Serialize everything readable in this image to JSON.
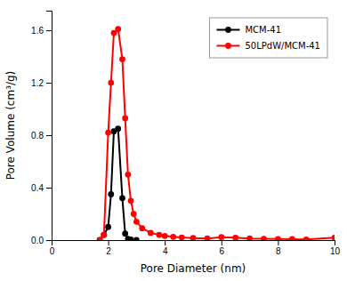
{
  "chart_data": {
    "type": "line",
    "xlabel": "Pore Diameter (nm)",
    "ylabel": "Pore Volume (cm³/g)",
    "xlim": [
      0,
      10
    ],
    "ylim": [
      0,
      1.75
    ],
    "xticks": [
      0,
      2,
      4,
      6,
      8,
      10
    ],
    "yticks": [
      {
        "value": 0.0,
        "label": "0.0"
      },
      0.4,
      0.8,
      1.2,
      1.6
    ],
    "grid": false,
    "legend": "upper right",
    "series": [
      {
        "name": "MCM-41",
        "color": "#000000",
        "marker": "circle",
        "x": [
          1.7,
          1.85,
          2.0,
          2.1,
          2.2,
          2.35,
          2.5,
          2.6,
          2.7,
          2.8,
          3.0
        ],
        "values": [
          0.0,
          0.04,
          0.1,
          0.35,
          0.83,
          0.85,
          0.32,
          0.05,
          0.01,
          0.005,
          0.0
        ]
      },
      {
        "name": "50LPdW/MCM-41",
        "color": "#ff0000",
        "marker": "circle",
        "x": [
          1.7,
          1.85,
          2.0,
          2.1,
          2.2,
          2.35,
          2.5,
          2.6,
          2.7,
          2.8,
          2.9,
          3.0,
          3.2,
          3.5,
          3.8,
          4.0,
          4.3,
          4.6,
          5.0,
          5.5,
          6.0,
          6.5,
          7.0,
          7.5,
          8.0,
          8.5,
          9.0,
          10.0
        ],
        "values": [
          0.0,
          0.04,
          0.82,
          1.2,
          1.58,
          1.61,
          1.38,
          0.93,
          0.5,
          0.3,
          0.2,
          0.14,
          0.09,
          0.055,
          0.04,
          0.032,
          0.025,
          0.02,
          0.016,
          0.012,
          0.022,
          0.018,
          0.012,
          0.01,
          0.008,
          0.007,
          0.005,
          0.018
        ]
      }
    ]
  }
}
